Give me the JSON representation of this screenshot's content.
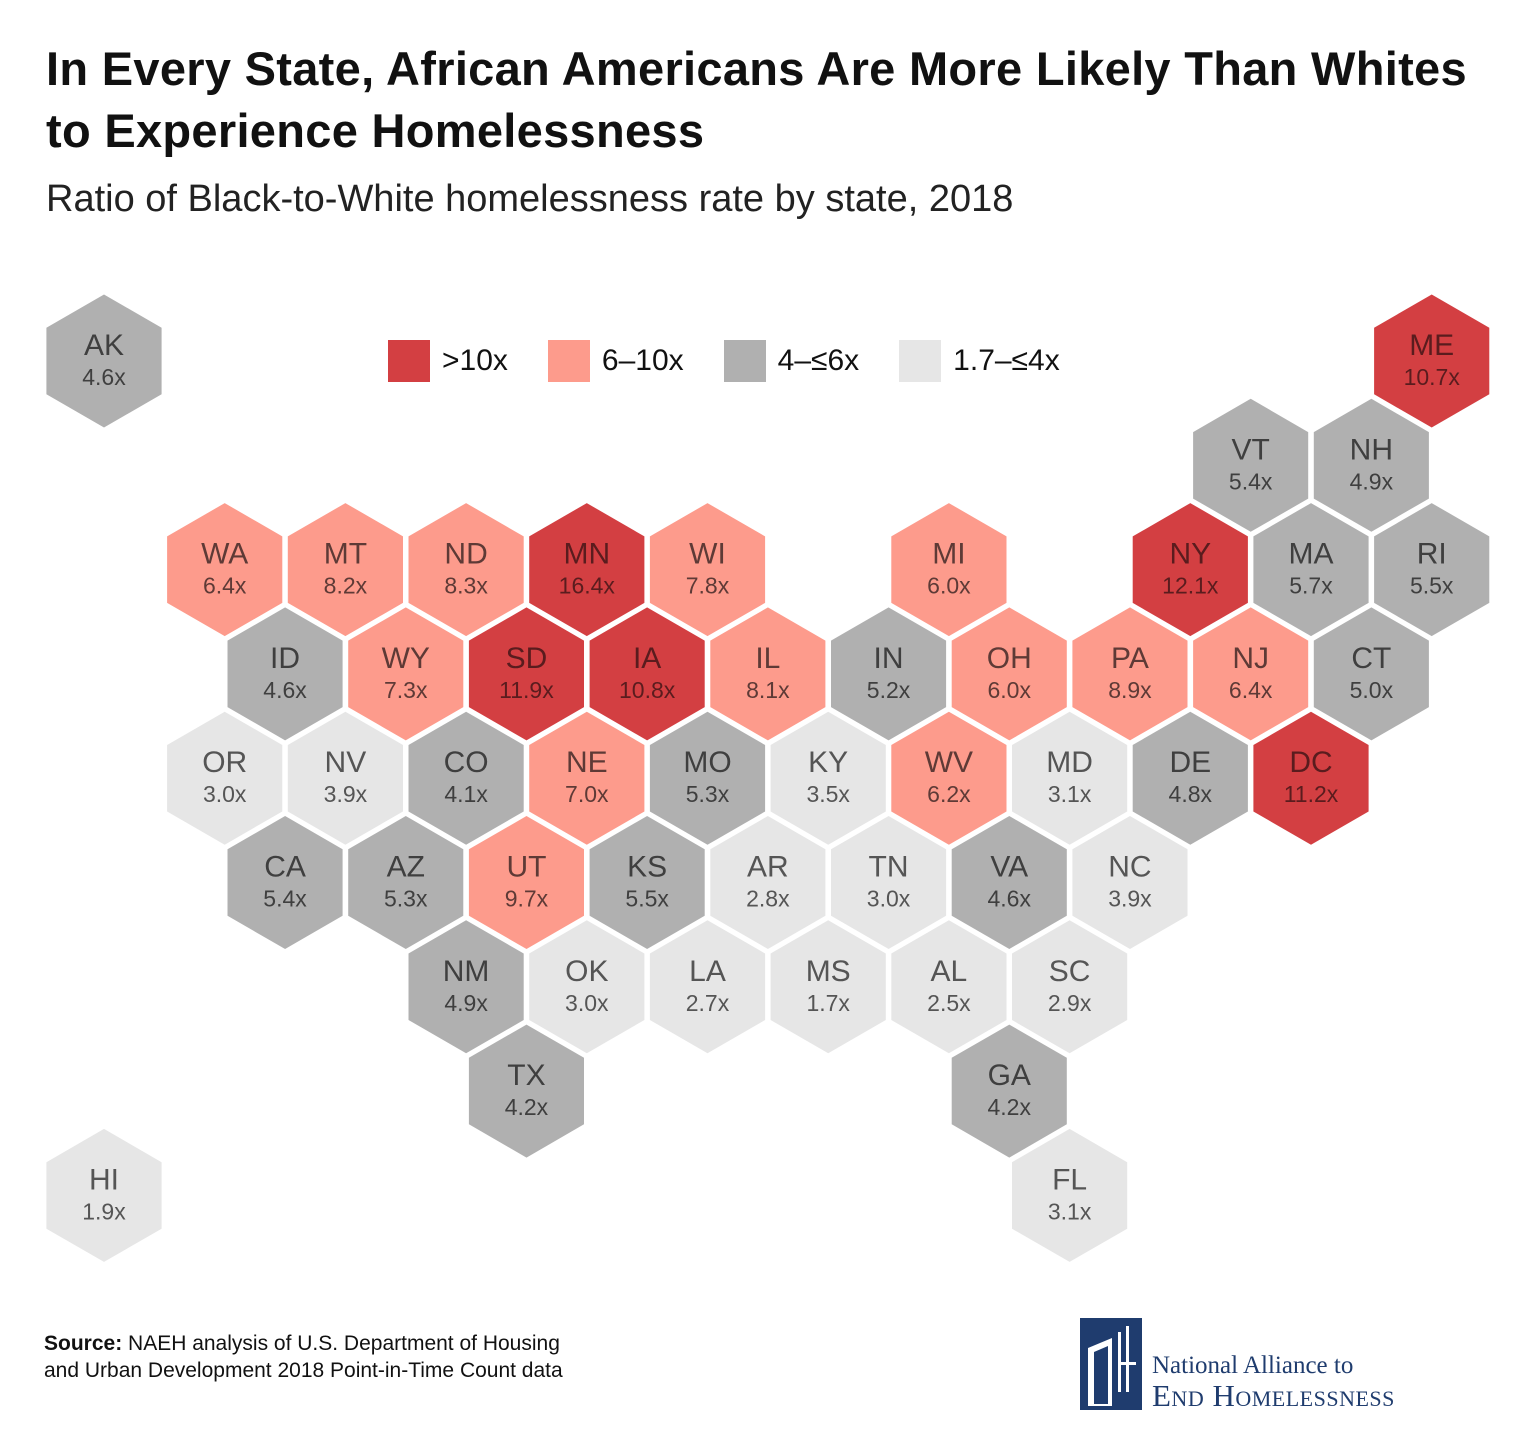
{
  "title": "In Every State, African Americans Are More Likely Than Whites to Experience Homelessness",
  "subtitle": "Ratio of Black-to-White homelessness rate by state, 2018",
  "legend": [
    {
      "label": ">10x",
      "color": "#d33f42",
      "category": "gt10"
    },
    {
      "label": "6–10x",
      "color": "#fd9b8c",
      "category": "6to10"
    },
    {
      "label": "4–≤6x",
      "color": "#b0b0b0",
      "category": "4to6"
    },
    {
      "label": "1.7–≤4x",
      "color": "#e6e6e6",
      "category": "1.7to4"
    }
  ],
  "chart_data": {
    "type": "hex-tile-map",
    "title": "Ratio of Black-to-White homelessness rate by state, 2018",
    "states": [
      {
        "abbr": "AK",
        "label": "4.6x",
        "ratio": 4.6,
        "category": "4to6"
      },
      {
        "abbr": "ME",
        "label": "10.7x",
        "ratio": 10.7,
        "category": "gt10"
      },
      {
        "abbr": "VT",
        "label": "5.4x",
        "ratio": 5.4,
        "category": "4to6"
      },
      {
        "abbr": "NH",
        "label": "4.9x",
        "ratio": 4.9,
        "category": "4to6"
      },
      {
        "abbr": "WA",
        "label": "6.4x",
        "ratio": 6.4,
        "category": "6to10"
      },
      {
        "abbr": "MT",
        "label": "8.2x",
        "ratio": 8.2,
        "category": "6to10"
      },
      {
        "abbr": "ND",
        "label": "8.3x",
        "ratio": 8.3,
        "category": "6to10"
      },
      {
        "abbr": "MN",
        "label": "16.4x",
        "ratio": 16.4,
        "category": "gt10"
      },
      {
        "abbr": "WI",
        "label": "7.8x",
        "ratio": 7.8,
        "category": "6to10"
      },
      {
        "abbr": "MI",
        "label": "6.0x",
        "ratio": 6.0,
        "category": "6to10"
      },
      {
        "abbr": "NY",
        "label": "12.1x",
        "ratio": 12.1,
        "category": "gt10"
      },
      {
        "abbr": "MA",
        "label": "5.7x",
        "ratio": 5.7,
        "category": "4to6"
      },
      {
        "abbr": "RI",
        "label": "5.5x",
        "ratio": 5.5,
        "category": "4to6"
      },
      {
        "abbr": "ID",
        "label": "4.6x",
        "ratio": 4.6,
        "category": "4to6"
      },
      {
        "abbr": "WY",
        "label": "7.3x",
        "ratio": 7.3,
        "category": "6to10"
      },
      {
        "abbr": "SD",
        "label": "11.9x",
        "ratio": 11.9,
        "category": "gt10"
      },
      {
        "abbr": "IA",
        "label": "10.8x",
        "ratio": 10.8,
        "category": "gt10"
      },
      {
        "abbr": "IL",
        "label": "8.1x",
        "ratio": 8.1,
        "category": "6to10"
      },
      {
        "abbr": "IN",
        "label": "5.2x",
        "ratio": 5.2,
        "category": "4to6"
      },
      {
        "abbr": "OH",
        "label": "6.0x",
        "ratio": 6.0,
        "category": "6to10"
      },
      {
        "abbr": "PA",
        "label": "8.9x",
        "ratio": 8.9,
        "category": "6to10"
      },
      {
        "abbr": "NJ",
        "label": "6.4x",
        "ratio": 6.4,
        "category": "6to10"
      },
      {
        "abbr": "CT",
        "label": "5.0x",
        "ratio": 5.0,
        "category": "4to6"
      },
      {
        "abbr": "OR",
        "label": "3.0x",
        "ratio": 3.0,
        "category": "1.7to4"
      },
      {
        "abbr": "NV",
        "label": "3.9x",
        "ratio": 3.9,
        "category": "1.7to4"
      },
      {
        "abbr": "CO",
        "label": "4.1x",
        "ratio": 4.1,
        "category": "4to6"
      },
      {
        "abbr": "NE",
        "label": "7.0x",
        "ratio": 7.0,
        "category": "6to10"
      },
      {
        "abbr": "MO",
        "label": "5.3x",
        "ratio": 5.3,
        "category": "4to6"
      },
      {
        "abbr": "KY",
        "label": "3.5x",
        "ratio": 3.5,
        "category": "1.7to4"
      },
      {
        "abbr": "WV",
        "label": "6.2x",
        "ratio": 6.2,
        "category": "6to10"
      },
      {
        "abbr": "MD",
        "label": "3.1x",
        "ratio": 3.1,
        "category": "1.7to4"
      },
      {
        "abbr": "DE",
        "label": "4.8x",
        "ratio": 4.8,
        "category": "4to6"
      },
      {
        "abbr": "DC",
        "label": "11.2x",
        "ratio": 11.2,
        "category": "gt10"
      },
      {
        "abbr": "CA",
        "label": "5.4x",
        "ratio": 5.4,
        "category": "4to6"
      },
      {
        "abbr": "AZ",
        "label": "5.3x",
        "ratio": 5.3,
        "category": "4to6"
      },
      {
        "abbr": "UT",
        "label": "9.7x",
        "ratio": 9.7,
        "category": "6to10"
      },
      {
        "abbr": "KS",
        "label": "5.5x",
        "ratio": 5.5,
        "category": "4to6"
      },
      {
        "abbr": "AR",
        "label": "2.8x",
        "ratio": 2.8,
        "category": "1.7to4"
      },
      {
        "abbr": "TN",
        "label": "3.0x",
        "ratio": 3.0,
        "category": "1.7to4"
      },
      {
        "abbr": "VA",
        "label": "4.6x",
        "ratio": 4.6,
        "category": "4to6"
      },
      {
        "abbr": "NC",
        "label": "3.9x",
        "ratio": 3.9,
        "category": "1.7to4"
      },
      {
        "abbr": "NM",
        "label": "4.9x",
        "ratio": 4.9,
        "category": "4to6"
      },
      {
        "abbr": "OK",
        "label": "3.0x",
        "ratio": 3.0,
        "category": "1.7to4"
      },
      {
        "abbr": "LA",
        "label": "2.7x",
        "ratio": 2.7,
        "category": "1.7to4"
      },
      {
        "abbr": "MS",
        "label": "1.7x",
        "ratio": 1.7,
        "category": "1.7to4"
      },
      {
        "abbr": "AL",
        "label": "2.5x",
        "ratio": 2.5,
        "category": "1.7to4"
      },
      {
        "abbr": "SC",
        "label": "2.9x",
        "ratio": 2.9,
        "category": "1.7to4"
      },
      {
        "abbr": "TX",
        "label": "4.2x",
        "ratio": 4.2,
        "category": "4to6"
      },
      {
        "abbr": "GA",
        "label": "4.2x",
        "ratio": 4.2,
        "category": "4to6"
      },
      {
        "abbr": "HI",
        "label": "1.9x",
        "ratio": 1.9,
        "category": "1.7to4"
      },
      {
        "abbr": "FL",
        "label": "3.1x",
        "ratio": 3.1,
        "category": "1.7to4"
      }
    ]
  },
  "source": {
    "label": "Source:",
    "text": " NAEH analysis of U.S. Department of Housing and Urban Development 2018 Point-in-Time Count data"
  },
  "logo": {
    "line1": "National Alliance to",
    "line2": "End Homelessness",
    "color": "#1f3c6e"
  }
}
